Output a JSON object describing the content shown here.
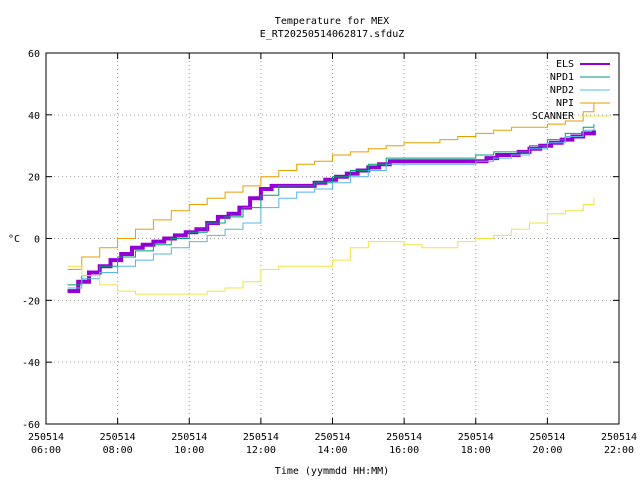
{
  "chart_data": {
    "type": "line",
    "title": "Temperature for MEX",
    "subtitle": "E_RT20250514062817.sfduZ",
    "xlabel": "Time (yymmdd HH:MM)",
    "ylabel": "°C",
    "xlim": [
      "2025-05-14 06:00",
      "2025-05-14 22:00"
    ],
    "ylim": [
      -60,
      60
    ],
    "grid": true,
    "legend_position": "top-right",
    "x_ticks": [
      {
        "date": "250514",
        "time": "06:00",
        "hour": 6
      },
      {
        "date": "250514",
        "time": "08:00",
        "hour": 8
      },
      {
        "date": "250514",
        "time": "10:00",
        "hour": 10
      },
      {
        "date": "250514",
        "time": "12:00",
        "hour": 12
      },
      {
        "date": "250514",
        "time": "14:00",
        "hour": 14
      },
      {
        "date": "250514",
        "time": "16:00",
        "hour": 16
      },
      {
        "date": "250514",
        "time": "18:00",
        "hour": 18
      },
      {
        "date": "250514",
        "time": "20:00",
        "hour": 20
      },
      {
        "date": "250514",
        "time": "22:00",
        "hour": 22
      }
    ],
    "y_ticks": [
      -60,
      -40,
      -20,
      0,
      20,
      40,
      60
    ],
    "series": [
      {
        "name": "ELS",
        "color": "#9400d3",
        "width": 4,
        "x": [
          6.6,
          6.9,
          7.2,
          7.5,
          7.8,
          8.1,
          8.4,
          8.7,
          9.0,
          9.3,
          9.6,
          9.9,
          10.2,
          10.5,
          10.8,
          11.1,
          11.4,
          11.7,
          12.0,
          12.3,
          12.6,
          12.9,
          13.2,
          13.5,
          13.8,
          14.1,
          14.4,
          14.7,
          15.0,
          15.3,
          15.6,
          15.9,
          16.2,
          16.5,
          16.8,
          17.1,
          17.4,
          17.7,
          18.0,
          18.3,
          18.6,
          18.9,
          19.2,
          19.5,
          19.8,
          20.1,
          20.4,
          20.7,
          21.0,
          21.3
        ],
        "y": [
          -17,
          -14,
          -11,
          -9,
          -7,
          -5,
          -3,
          -2,
          -1,
          0,
          1,
          2,
          3,
          5,
          7,
          8,
          10,
          13,
          16,
          17,
          17,
          17,
          17,
          18,
          19,
          20,
          21,
          22,
          23,
          24,
          25,
          25,
          25,
          25,
          25,
          25,
          25,
          25,
          25,
          26,
          27,
          27,
          28,
          29,
          30,
          31,
          32,
          33,
          34,
          35
        ]
      },
      {
        "name": "NPD1",
        "color": "#009e73",
        "width": 1,
        "x": [
          6.6,
          7.0,
          7.5,
          8.0,
          8.5,
          9.0,
          9.5,
          10.0,
          10.5,
          11.0,
          11.5,
          12.0,
          12.5,
          13.0,
          13.5,
          14.0,
          14.5,
          15.0,
          15.5,
          16.0,
          16.5,
          17.0,
          17.5,
          18.0,
          18.5,
          19.0,
          19.5,
          20.0,
          20.5,
          21.0,
          21.3
        ],
        "y": [
          -15,
          -12,
          -9,
          -6,
          -4,
          -2,
          0,
          2,
          5,
          7,
          10,
          14,
          17,
          17,
          18,
          20,
          22,
          24,
          26,
          26,
          26,
          26,
          26,
          27,
          28,
          28,
          30,
          32,
          34,
          36,
          37
        ]
      },
      {
        "name": "NPD2",
        "color": "#56b4e9",
        "width": 1,
        "x": [
          6.6,
          7.0,
          7.5,
          8.0,
          8.5,
          9.0,
          9.5,
          10.0,
          10.5,
          11.0,
          11.5,
          12.0,
          12.5,
          13.0,
          13.5,
          14.0,
          14.5,
          15.0,
          15.5,
          16.0,
          16.5,
          17.0,
          17.5,
          18.0,
          18.5,
          19.0,
          19.5,
          20.0,
          20.5,
          21.0,
          21.3
        ],
        "y": [
          -16,
          -13,
          -11,
          -9,
          -7,
          -5,
          -3,
          -1,
          1,
          3,
          5,
          10,
          13,
          15,
          16,
          18,
          20,
          22,
          24,
          24,
          24,
          24,
          24,
          25,
          26,
          27,
          29,
          31,
          33,
          35,
          36
        ]
      },
      {
        "name": "NPI",
        "color": "#e69f00",
        "width": 1,
        "x": [
          6.6,
          7.0,
          7.5,
          8.0,
          8.5,
          9.0,
          9.5,
          10.0,
          10.5,
          11.0,
          11.5,
          12.0,
          12.5,
          13.0,
          13.5,
          14.0,
          14.5,
          15.0,
          15.5,
          16.0,
          16.5,
          17.0,
          17.5,
          18.0,
          18.5,
          19.0,
          19.5,
          20.0,
          20.5,
          21.0,
          21.3
        ],
        "y": [
          -10,
          -6,
          -3,
          0,
          3,
          6,
          9,
          11,
          13,
          15,
          17,
          20,
          22,
          24,
          25,
          27,
          28,
          29,
          30,
          31,
          31,
          32,
          33,
          34,
          35,
          36,
          36,
          37,
          38,
          41,
          44
        ]
      },
      {
        "name": "SCANNER",
        "color": "#f0e442",
        "width": 1,
        "x": [
          6.6,
          7.0,
          7.5,
          8.0,
          8.5,
          9.0,
          9.5,
          10.0,
          10.5,
          11.0,
          11.5,
          12.0,
          12.5,
          13.0,
          13.5,
          14.0,
          14.5,
          15.0,
          15.5,
          16.0,
          16.5,
          17.0,
          17.5,
          18.0,
          18.5,
          19.0,
          19.5,
          20.0,
          20.5,
          21.0,
          21.3
        ],
        "y": [
          -9,
          -12,
          -15,
          -17,
          -18,
          -18,
          -18,
          -18,
          -17,
          -16,
          -14,
          -10,
          -9,
          -9,
          -9,
          -7,
          -3,
          -1,
          -1,
          -2,
          -3,
          -3,
          -1,
          0,
          1,
          3,
          5,
          8,
          9,
          11,
          13
        ]
      }
    ]
  }
}
